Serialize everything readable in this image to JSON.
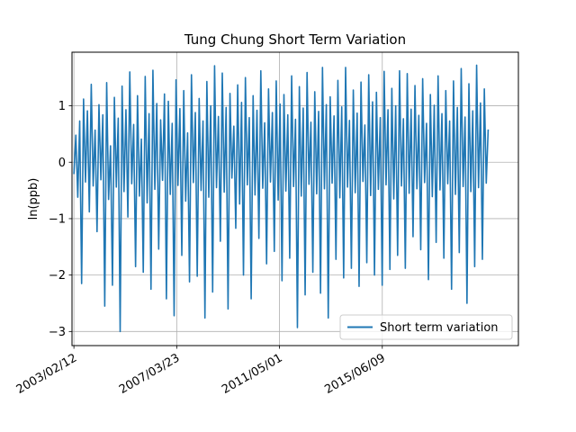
{
  "chart_data": {
    "type": "line",
    "title": "Tung Chung Short Term Variation",
    "xlabel": "",
    "ylabel": "ln(ppb)",
    "x_range": [
      "2003/01/15",
      "2020/11/15"
    ],
    "ylim": [
      -3.25,
      1.95
    ],
    "x_ticks": [
      "2003/02/12",
      "2007/03/23",
      "2011/05/01",
      "2015/06/09"
    ],
    "y_ticks": [
      1,
      0,
      -1,
      -2,
      -3
    ],
    "y_tick_labels": [
      "1",
      "0",
      "−1",
      "−2",
      "−3"
    ],
    "grid": true,
    "legend_position": "lower-right",
    "x_start": "2003/02/12",
    "x_end": "2019/09/01",
    "series": [
      {
        "name": "Short term variation",
        "color": "#1f77b4",
        "y_min": -3.0,
        "y_max": 1.72,
        "values": [
          -0.21,
          0.48,
          -0.62,
          0.73,
          -2.15,
          1.12,
          -0.35,
          0.91,
          -0.88,
          1.38,
          -0.42,
          0.57,
          -1.23,
          1.02,
          -0.31,
          0.84,
          -2.55,
          1.41,
          -0.66,
          0.29,
          -2.18,
          1.15,
          -0.44,
          0.78,
          -3.0,
          1.35,
          -0.52,
          0.93,
          -0.97,
          1.6,
          -0.38,
          0.67,
          -1.85,
          1.18,
          -0.6,
          0.41,
          -1.95,
          1.52,
          -0.72,
          0.86,
          -2.25,
          1.63,
          -0.48,
          1.04,
          -1.54,
          0.75,
          -0.32,
          1.21,
          -2.42,
          1.08,
          -0.57,
          0.69,
          -2.72,
          1.46,
          -0.41,
          0.95,
          -1.65,
          1.27,
          -0.69,
          0.52,
          -2.12,
          1.55,
          -0.36,
          0.88,
          -2.02,
          1.13,
          -0.5,
          0.73,
          -2.76,
          1.43,
          -0.62,
          1.0,
          -2.3,
          1.71,
          -0.45,
          0.81,
          -1.4,
          1.58,
          -0.53,
          0.97,
          -2.6,
          1.22,
          -0.28,
          0.64,
          -1.17,
          1.37,
          -0.74,
          1.06,
          -2.0,
          1.5,
          -0.4,
          0.79,
          -2.42,
          1.18,
          -0.58,
          0.92,
          -1.35,
          1.62,
          -0.46,
          0.7,
          -1.8,
          1.3,
          -0.35,
          0.88,
          -1.58,
          1.44,
          -0.67,
          1.03,
          -2.1,
          1.2,
          -0.51,
          0.84,
          -1.7,
          1.53,
          -0.43,
          0.76,
          -2.93,
          1.34,
          -0.6,
          0.96,
          -2.35,
          1.59,
          -0.39,
          0.71,
          -1.95,
          1.25,
          -0.56,
          0.9,
          -2.32,
          1.68,
          -0.47,
          1.02,
          -2.76,
          1.16,
          -0.37,
          0.82,
          -1.72,
          1.45,
          -0.63,
          0.98,
          -2.05,
          1.68,
          -0.44,
          0.74,
          -1.88,
          1.28,
          -0.54,
          0.87,
          -2.2,
          1.42,
          -0.34,
          0.66,
          -1.78,
          1.55,
          -0.59,
          1.07,
          -2.0,
          1.24,
          -0.48,
          0.79,
          -2.18,
          1.61,
          -0.4,
          0.93,
          -1.9,
          1.31,
          -0.65,
          1.0,
          -1.65,
          1.62,
          -0.42,
          0.77,
          -1.88,
          1.57,
          -0.55,
          0.94,
          -1.32,
          1.36,
          -0.47,
          0.83,
          -1.55,
          1.48,
          -0.36,
          0.69,
          -2.08,
          1.2,
          -0.61,
          1.01,
          -1.42,
          1.53,
          -0.49,
          0.86,
          -1.7,
          1.27,
          -0.38,
          0.73,
          -2.25,
          1.44,
          -0.57,
          0.97,
          -1.6,
          1.66,
          -0.43,
          0.8,
          -2.5,
          1.39,
          -0.52,
          0.91,
          -1.85,
          1.72,
          -0.45,
          1.05,
          -1.72,
          1.3,
          -0.37,
          0.58
        ]
      }
    ]
  }
}
